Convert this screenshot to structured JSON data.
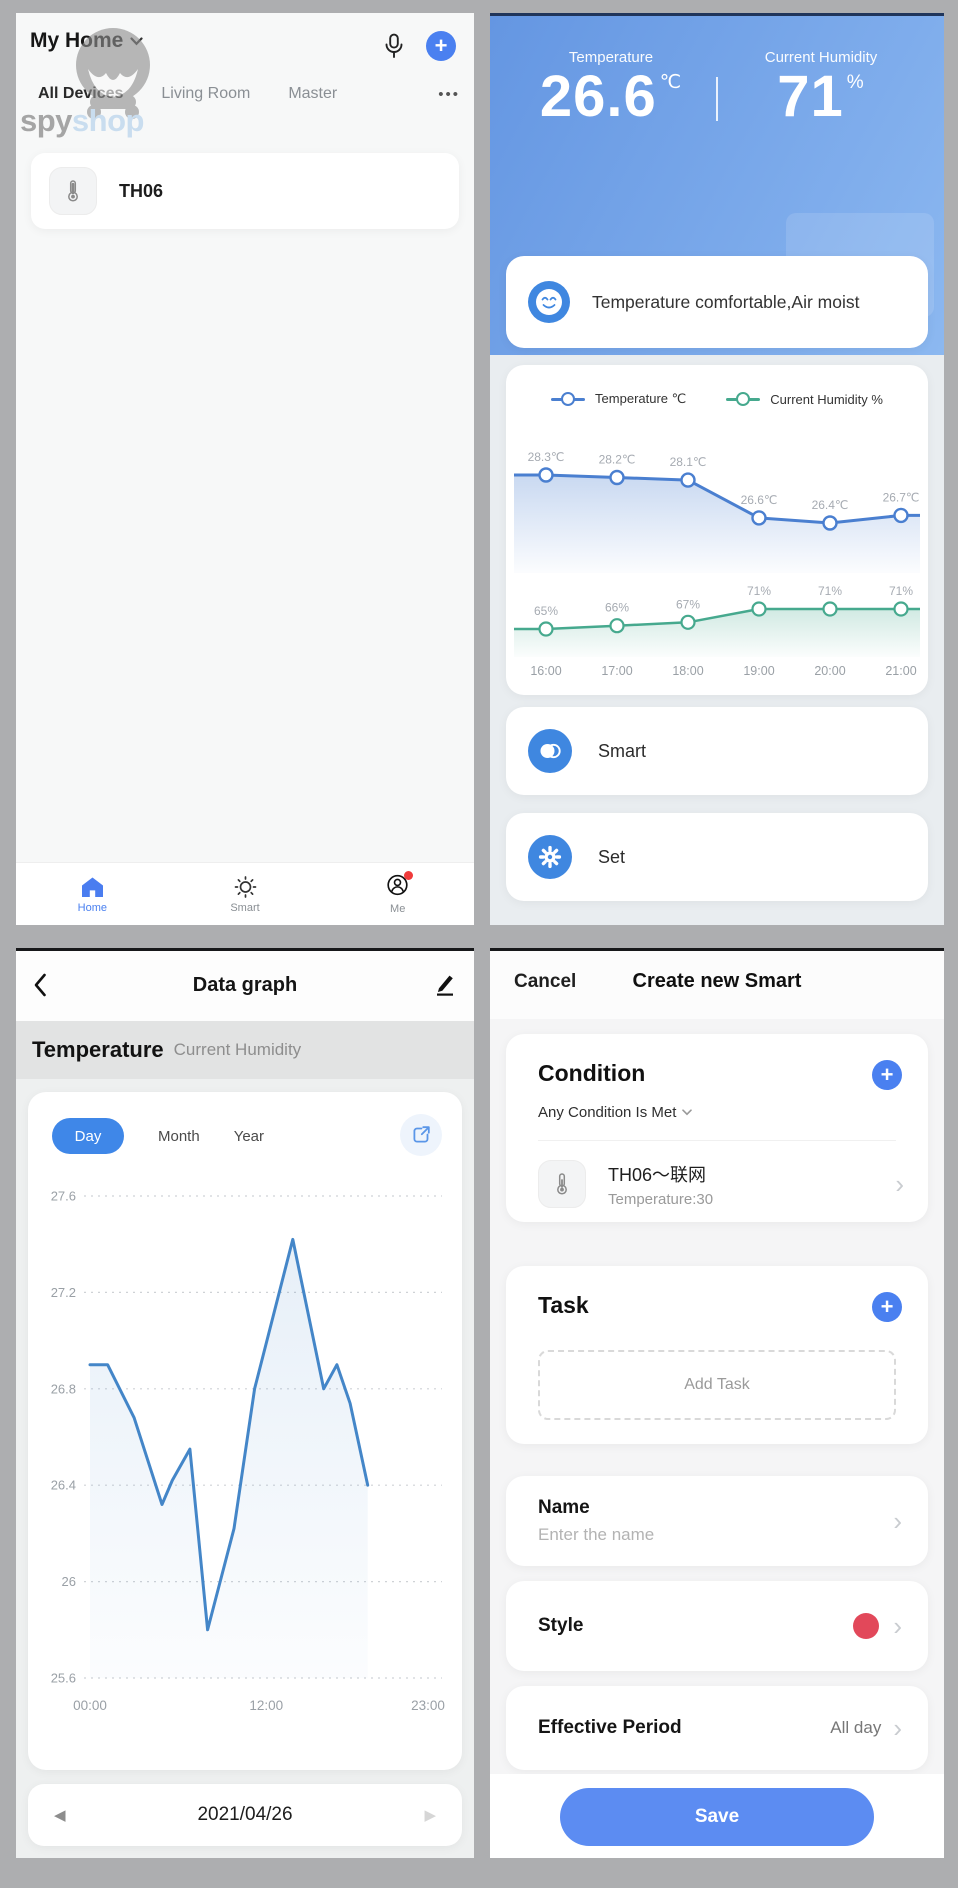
{
  "colors": {
    "accent": "#4a80f0",
    "save_button": "#5c8cf2",
    "day_pill": "#3f87e8",
    "icon_blue": "#3f87e0",
    "temp_line": "#4a7fd0",
    "humidity_line": "#46a98e",
    "day_line": "#4486c8",
    "style_red": "#e2485a",
    "badge_red": "#f03b3b",
    "header_blue_top": "#6496e2",
    "header_blue_bottom": "#7fadec"
  },
  "icons": {
    "more": "•••",
    "plus": "+",
    "chevron": "›",
    "prev": "◀",
    "next": "▶"
  },
  "home": {
    "title": "My Home",
    "tabs": [
      "All Devices",
      "Living Room",
      "Master"
    ],
    "device_name": "TH06",
    "nav": {
      "home": "Home",
      "smart": "Smart",
      "me": "Me"
    },
    "watermark": {
      "spy": "spy",
      "shop": "shop"
    }
  },
  "device": {
    "temperature_label": "Temperature",
    "temperature_value": "26.6",
    "temperature_unit": "℃",
    "humidity_label": "Current Humidity",
    "humidity_value": "71",
    "humidity_unit": "%",
    "status_message": "Temperature comfortable,Air moist",
    "smart_button": "Smart",
    "set_button": "Set"
  },
  "datagraph": {
    "title": "Data graph",
    "series_tabs": [
      "Temperature",
      "Current Humidity"
    ],
    "range_tabs": [
      "Day",
      "Month",
      "Year"
    ],
    "date": "2021/04/26"
  },
  "smart_editor": {
    "cancel": "Cancel",
    "title": "Create new Smart",
    "condition_title": "Condition",
    "condition_subtitle": "Any Condition Is Met",
    "condition_device": "TH06～联网",
    "condition_detail": "Temperature:30",
    "task_title": "Task",
    "add_task": "Add Task",
    "name_title": "Name",
    "name_placeholder": "Enter the name",
    "style_title": "Style",
    "period_title": "Effective Period",
    "period_value": "All day",
    "save": "Save"
  },
  "chart_data": [
    {
      "type": "line",
      "title": "Temperature & Current Humidity (hourly)",
      "categories": [
        "16:00",
        "17:00",
        "18:00",
        "19:00",
        "20:00",
        "21:00"
      ],
      "series": [
        {
          "name": "Temperature ℃",
          "color": "#4a7fd0",
          "values": [
            28.3,
            28.2,
            28.1,
            26.6,
            26.4,
            26.7
          ],
          "labels": [
            "28.3℃",
            "28.2℃",
            "28.1℃",
            "26.6℃",
            "26.4℃",
            "26.7℃"
          ]
        },
        {
          "name": "Current Humidity %",
          "color": "#46a98e",
          "values": [
            65,
            66,
            67,
            71,
            71,
            71
          ],
          "labels": [
            "65%",
            "66%",
            "67%",
            "71%",
            "71%",
            "71%"
          ]
        }
      ],
      "legend_position": "top",
      "grid": false
    },
    {
      "type": "line",
      "title": "Temperature — Day",
      "x": [
        0,
        1.2,
        3,
        4.9,
        5.6,
        6.8,
        8,
        9.8,
        11.2,
        13.8,
        15.9,
        16.8,
        17.7,
        18.9
      ],
      "values": [
        26.9,
        26.9,
        26.68,
        26.32,
        26.42,
        26.55,
        25.8,
        26.22,
        26.8,
        27.42,
        26.8,
        26.9,
        26.74,
        26.4
      ],
      "color": "#4486c8",
      "ylim": [
        25.6,
        27.6
      ],
      "yticks": [
        27.6,
        27.2,
        26.8,
        26.4,
        26,
        25.6
      ],
      "xticks": [
        "00:00",
        "12:00",
        "23:00"
      ],
      "xtick_values": [
        0,
        12,
        23
      ],
      "xrange": [
        0,
        23
      ],
      "grid": "dotted-horizontal"
    }
  ]
}
